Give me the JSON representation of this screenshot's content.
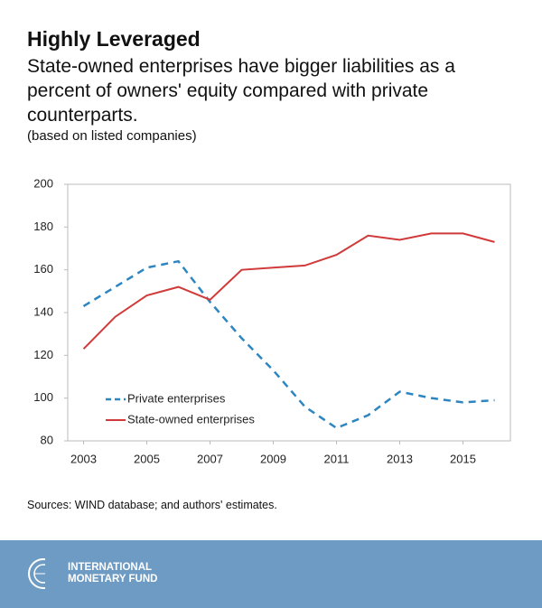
{
  "chart_data": {
    "type": "line",
    "title": "Highly Leveraged",
    "subtitle": "State-owned enterprises have bigger liabilities as a percent of owners' equity compared with private counterparts.",
    "note": "(based on listed companies)",
    "x": [
      2003,
      2004,
      2005,
      2006,
      2007,
      2008,
      2009,
      2010,
      2011,
      2012,
      2013,
      2014,
      2015,
      2016
    ],
    "series": [
      {
        "name": "Private enterprises",
        "color": "#2e86c1",
        "dashed": true,
        "values": [
          143,
          152,
          161,
          164,
          145,
          128,
          113,
          96,
          86,
          92,
          103,
          100,
          98,
          99
        ]
      },
      {
        "name": "State-owned enterprises",
        "color": "#d03a3a",
        "dashed": false,
        "values": [
          123,
          138,
          148,
          152,
          146,
          160,
          161,
          162,
          167,
          176,
          174,
          177,
          177,
          173
        ]
      }
    ],
    "xlim": [
      2002.5,
      2016.5
    ],
    "xticks": [
      2003,
      2005,
      2007,
      2009,
      2011,
      2013,
      2015
    ],
    "ylim": [
      80,
      200
    ],
    "yticks": [
      80,
      100,
      120,
      140,
      160,
      180,
      200
    ],
    "grid": false,
    "legend": "lower-left",
    "source": "Sources: WIND database; and authors' estimates."
  },
  "footer": {
    "org": "INTERNATIONAL MONETARY FUND"
  }
}
